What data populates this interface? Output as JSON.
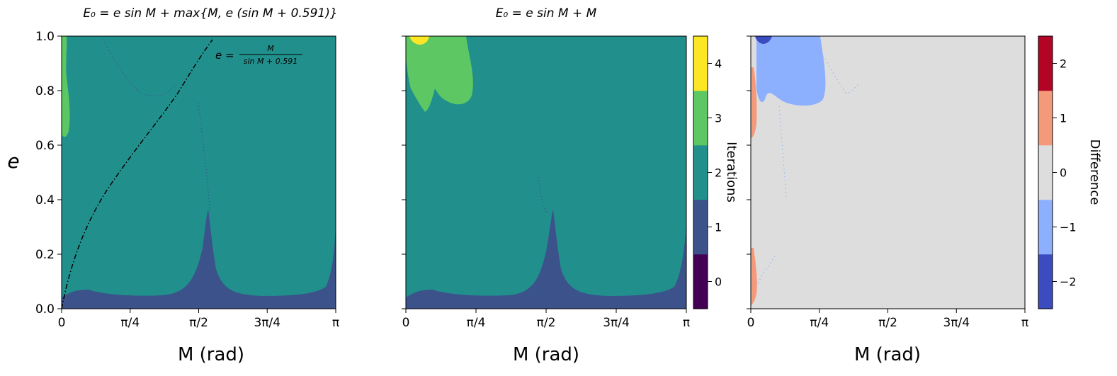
{
  "chart_data": [
    {
      "type": "heatmap",
      "title": "E₀ = e sin M + max{M, e (sin M + 0.591)}",
      "xlabel": "M (rad)",
      "ylabel": "e",
      "xlim": [
        0,
        3.1416
      ],
      "ylim": [
        0,
        1.0
      ],
      "xticks": [
        "0",
        "π/4",
        "π/2",
        "3π/4",
        "π"
      ],
      "yticks": [
        "0.0",
        "0.2",
        "0.4",
        "0.6",
        "0.8",
        "1.0"
      ],
      "annotation": {
        "lhs": "e =",
        "numerator": "M",
        "denominator": "sin M + 0.591"
      },
      "curve": "e = M / (sin M + 0.591)",
      "regions": [
        {
          "value": 1,
          "description": "low-e band along bottom edge and narrow spikes near M≈0, π/2, π"
        },
        {
          "value": 2,
          "description": "most of the domain"
        },
        {
          "value": 3,
          "description": "small patch near M≈0, e≈0.7–1.0"
        }
      ]
    },
    {
      "type": "heatmap",
      "title": "E₀ = e sin M + M",
      "xlabel": "M (rad)",
      "xlim": [
        0,
        3.1416
      ],
      "ylim": [
        0,
        1.0
      ],
      "xticks": [
        "0",
        "π/4",
        "π/2",
        "3π/4",
        "π"
      ],
      "regions": [
        {
          "value": 1,
          "description": "low-e band along bottom edge and narrow spikes near M≈0, π/2, π"
        },
        {
          "value": 2,
          "description": "most of the domain"
        },
        {
          "value": 3,
          "description": "lobe near M≈0–0.5, e≈0.72–1.0"
        },
        {
          "value": 4,
          "description": "small patch at M≈0.15, e≈0.98–1.0"
        }
      ],
      "colorbar": {
        "label": "Iterations",
        "ticks": [
          "0",
          "1",
          "2",
          "3",
          "4"
        ],
        "colors": [
          "#440154",
          "#3b528b",
          "#21908d",
          "#5dc863",
          "#fde725"
        ]
      }
    },
    {
      "type": "heatmap",
      "xlabel": "M (rad)",
      "xlim": [
        0,
        3.1416
      ],
      "ylim": [
        0,
        1.0
      ],
      "xticks": [
        "0",
        "π/4",
        "π/2",
        "3π/4",
        "π"
      ],
      "regions": [
        {
          "value": 0,
          "description": "most of the domain"
        },
        {
          "value": -1,
          "description": "lobe near M≈0.05–0.55, e≈0.75–1.0"
        },
        {
          "value": -2,
          "description": "small patch at M≈0.1, e≈0.97–1.0"
        },
        {
          "value": 1,
          "description": "thin strips at M≈0–0.05, e≈0.63–0.9 and e≈0.05–0.23"
        }
      ],
      "colorbar": {
        "label": "Difference",
        "ticks": [
          "−2",
          "−1",
          "0",
          "1",
          "2"
        ],
        "colors": [
          "#3b4cc0",
          "#8caffe",
          "#dddddd",
          "#f49a7b",
          "#b40426"
        ]
      }
    }
  ]
}
